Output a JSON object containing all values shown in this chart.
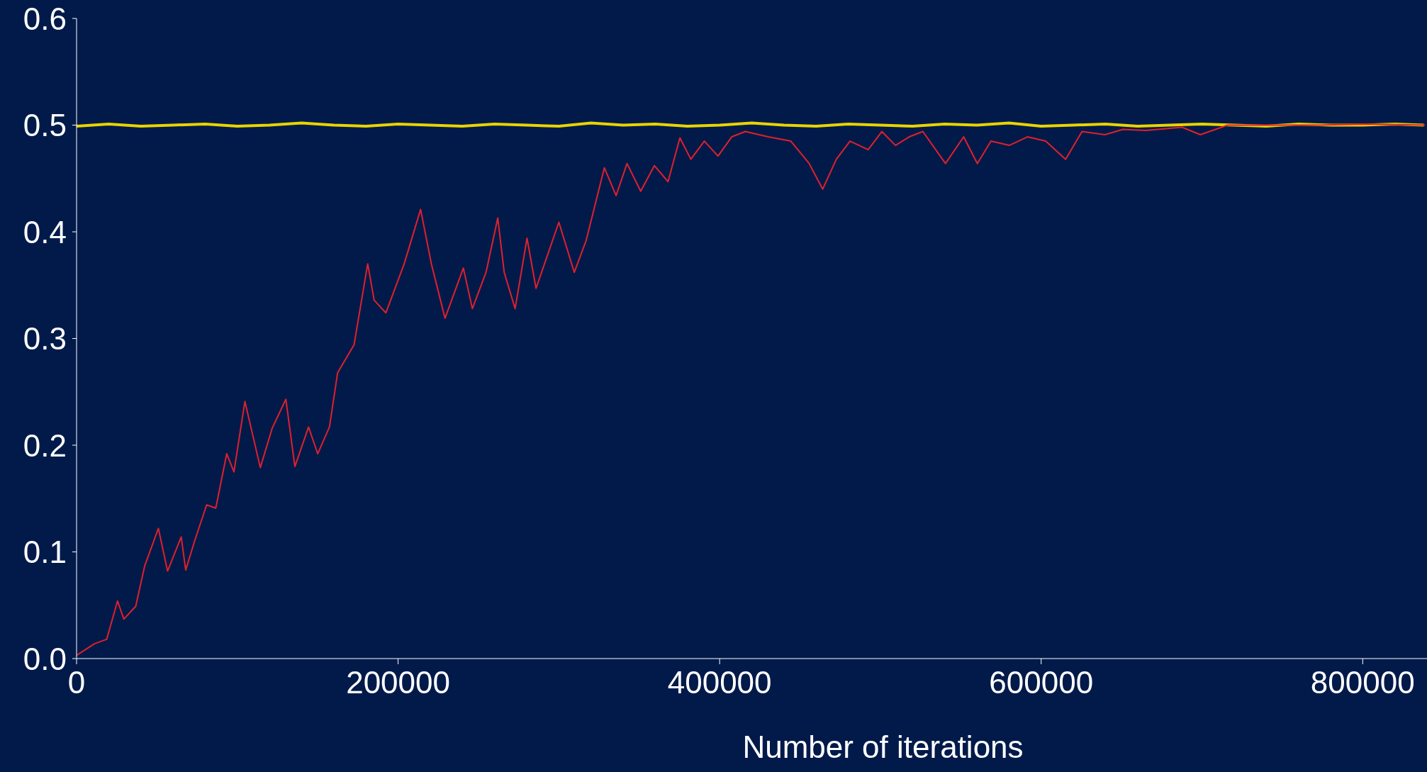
{
  "chart_data": {
    "type": "line",
    "xlabel": "Number of iterations",
    "xlim": [
      0,
      840000
    ],
    "ylim": [
      0,
      0.6
    ],
    "xticks": [
      0,
      200000,
      400000,
      600000,
      800000
    ],
    "yticks": [
      {
        "value": 0,
        "label": "0.0"
      },
      0.1,
      0.2,
      0.3,
      0.4,
      0.5,
      0.6
    ],
    "grid": false,
    "legend": false,
    "marker": "none",
    "line_style": "solid",
    "series": [
      {
        "color": "#e8d400",
        "x": [
          0,
          20000,
          40000,
          60000,
          80000,
          100000,
          120000,
          140000,
          160000,
          180000,
          200000,
          220000,
          240000,
          260000,
          280000,
          300000,
          320000,
          340000,
          360000,
          380000,
          400000,
          420000,
          440000,
          460000,
          480000,
          500000,
          520000,
          540000,
          560000,
          580000,
          600000,
          620000,
          640000,
          660000,
          680000,
          700000,
          720000,
          740000,
          760000,
          780000,
          800000,
          820000,
          838000
        ],
        "values": [
          0.499,
          0.501,
          0.499,
          0.5,
          0.501,
          0.499,
          0.5,
          0.502,
          0.5,
          0.499,
          0.501,
          0.5,
          0.499,
          0.501,
          0.5,
          0.499,
          0.502,
          0.5,
          0.501,
          0.499,
          0.5,
          0.502,
          0.5,
          0.499,
          0.501,
          0.5,
          0.499,
          0.501,
          0.5,
          0.502,
          0.499,
          0.5,
          0.501,
          0.499,
          0.5,
          0.501,
          0.5,
          0.499,
          0.501,
          0.5,
          0.5,
          0.501,
          0.5
        ]
      },
      {
        "color": "#e0202c",
        "x": [
          0,
          11300,
          18700,
          25500,
          29400,
          36800,
          42400,
          50900,
          56600,
          65100,
          67900,
          73600,
          80900,
          86600,
          93400,
          97900,
          104700,
          114300,
          121700,
          130200,
          135800,
          144300,
          150000,
          157300,
          162400,
          172600,
          181100,
          185100,
          192400,
          203800,
          214000,
          220700,
          229200,
          240600,
          246200,
          254700,
          262000,
          266000,
          272800,
          280200,
          285800,
          300000,
          309600,
          317000,
          328300,
          335600,
          342400,
          350900,
          359400,
          367900,
          375300,
          382100,
          390500,
          399000,
          407500,
          416000,
          430200,
          444300,
          455700,
          464100,
          472600,
          481100,
          492400,
          500900,
          509400,
          517900,
          526400,
          540500,
          551800,
          560300,
          568800,
          580100,
          591500,
          602800,
          615200,
          625400,
          639600,
          650900,
          665100,
          687700,
          699000,
          716000,
          744300,
          772600,
          800900,
          838800
        ],
        "values": [
          0.003,
          0.014,
          0.018,
          0.054,
          0.037,
          0.049,
          0.087,
          0.122,
          0.082,
          0.114,
          0.083,
          0.111,
          0.144,
          0.141,
          0.192,
          0.175,
          0.241,
          0.179,
          0.216,
          0.243,
          0.18,
          0.217,
          0.192,
          0.217,
          0.268,
          0.294,
          0.37,
          0.336,
          0.324,
          0.37,
          0.421,
          0.37,
          0.319,
          0.366,
          0.328,
          0.362,
          0.413,
          0.362,
          0.328,
          0.394,
          0.347,
          0.409,
          0.362,
          0.392,
          0.46,
          0.434,
          0.464,
          0.438,
          0.462,
          0.447,
          0.488,
          0.468,
          0.485,
          0.471,
          0.489,
          0.494,
          0.489,
          0.485,
          0.464,
          0.44,
          0.468,
          0.485,
          0.477,
          0.494,
          0.481,
          0.489,
          0.494,
          0.464,
          0.489,
          0.464,
          0.485,
          0.481,
          0.489,
          0.485,
          0.468,
          0.494,
          0.491,
          0.496,
          0.495,
          0.498,
          0.491,
          0.5,
          0.5,
          0.5,
          0.501,
          0.5
        ]
      }
    ]
  }
}
